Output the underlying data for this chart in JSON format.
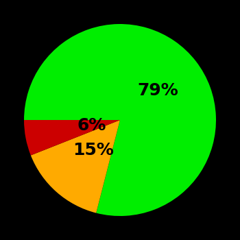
{
  "slices": [
    79,
    15,
    6
  ],
  "colors": [
    "#00ee00",
    "#ffaa00",
    "#cc0000"
  ],
  "labels": [
    "79%",
    "15%",
    "6%"
  ],
  "background_color": "#000000",
  "startangle": 180,
  "counterclock": false,
  "label_fontsize": 18,
  "label_fontweight": "bold",
  "label_color": "#000000",
  "label_radii": [
    0.5,
    0.42,
    0.3
  ],
  "figsize": [
    3.5,
    3.5
  ],
  "dpi": 100
}
